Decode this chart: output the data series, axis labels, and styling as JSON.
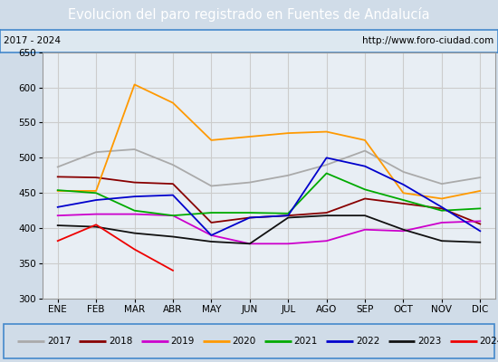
{
  "title": "Evolucion del paro registrado en Fuentes de Andalucía",
  "subtitle_left": "2017 - 2024",
  "subtitle_right": "http://www.foro-ciudad.com",
  "months": [
    "ENE",
    "FEB",
    "MAR",
    "ABR",
    "MAY",
    "JUN",
    "JUL",
    "AGO",
    "SEP",
    "OCT",
    "NOV",
    "DIC"
  ],
  "ylim": [
    300,
    650
  ],
  "yticks": [
    300,
    350,
    400,
    450,
    500,
    550,
    600,
    650
  ],
  "series": {
    "2017": {
      "color": "#aaaaaa",
      "values": [
        487,
        508,
        512,
        490,
        460,
        465,
        475,
        490,
        510,
        480,
        463,
        472
      ]
    },
    "2018": {
      "color": "#880000",
      "values": [
        473,
        472,
        465,
        463,
        408,
        415,
        418,
        422,
        442,
        435,
        428,
        406
      ]
    },
    "2019": {
      "color": "#cc00cc",
      "values": [
        418,
        420,
        420,
        418,
        390,
        378,
        378,
        382,
        398,
        396,
        408,
        410
      ]
    },
    "2020": {
      "color": "#ff9900",
      "values": [
        453,
        453,
        604,
        578,
        525,
        530,
        535,
        537,
        525,
        450,
        442,
        453
      ]
    },
    "2021": {
      "color": "#00aa00",
      "values": [
        454,
        450,
        425,
        418,
        422,
        422,
        421,
        478,
        455,
        440,
        425,
        428
      ]
    },
    "2022": {
      "color": "#0000cc",
      "values": [
        430,
        440,
        445,
        447,
        390,
        415,
        418,
        500,
        488,
        462,
        430,
        396
      ]
    },
    "2023": {
      "color": "#111111",
      "values": [
        404,
        402,
        393,
        388,
        381,
        378,
        415,
        418,
        418,
        398,
        382,
        380
      ]
    },
    "2024": {
      "color": "#ee0000",
      "values": [
        382,
        405,
        370,
        340,
        null,
        null,
        null,
        null,
        null,
        null,
        null,
        null
      ]
    }
  },
  "fig_bg": "#d0dce8",
  "plot_bg": "#e8eef4",
  "title_bg": "#4488cc",
  "title_fg": "#ffffff",
  "sub_bg": "#dde8f0",
  "grid_color": "#cccccc",
  "border_color": "#4488cc",
  "title_fontsize": 10.5,
  "tick_fontsize": 7.5,
  "legend_fontsize": 7.5
}
